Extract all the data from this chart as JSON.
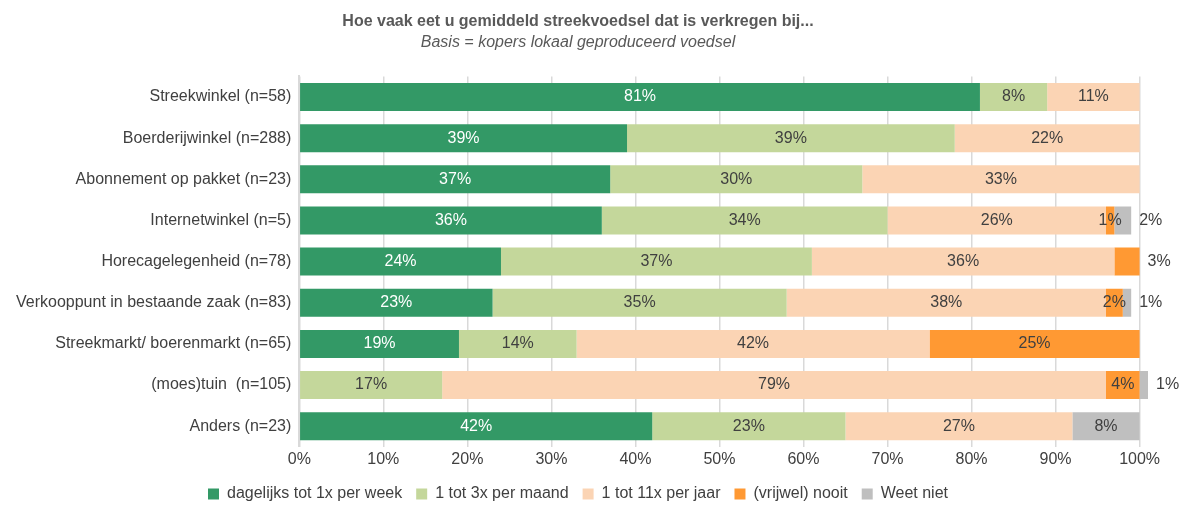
{
  "chart_data": {
    "type": "bar",
    "orientation": "horizontal",
    "stacked": true,
    "title": "Hoe vaak eet u gemiddeld streekvoedsel dat is verkregen bij...",
    "subtitle": "Basis = kopers lokaal geproduceerd voedsel",
    "categories": [
      "Streekwinkel (n=58)",
      "Boerderijwinkel (n=288)",
      "Abonnement op pakket (n=23)",
      "Internetwinkel (n=5)",
      "Horecagelegenheid (n=78)",
      "Verkooppunt in bestaande zaak (n=83)",
      "Streekmarkt/ boerenmarkt (n=65)",
      "(moes)tuin  (n=105)",
      "Anders (n=23)"
    ],
    "series": [
      {
        "name": "dagelijks tot 1x per week",
        "color": "#339966",
        "values": [
          81,
          39,
          37,
          36,
          24,
          23,
          19,
          null,
          42
        ],
        "value_labels": [
          "81%",
          "39%",
          "37%",
          "36%",
          "24%",
          "23%",
          "19%",
          null,
          "42%"
        ]
      },
      {
        "name": "1 tot 3x per maand",
        "color": "#c4d79b",
        "values": [
          8,
          39,
          30,
          34,
          37,
          35,
          14,
          17,
          23
        ],
        "value_labels": [
          "8%",
          "39%",
          "30%",
          "34%",
          "37%",
          "35%",
          "14%",
          "17%",
          "23%"
        ]
      },
      {
        "name": "1 tot 11x per jaar",
        "color": "#fbd4b4",
        "values": [
          11,
          22,
          33,
          26,
          36,
          38,
          42,
          79,
          27
        ],
        "value_labels": [
          "11%",
          "22%",
          "33%",
          "26%",
          "36%",
          "38%",
          "42%",
          "79%",
          "27%"
        ]
      },
      {
        "name": "(vrijwel) nooit",
        "color": "#ff9933",
        "values": [
          null,
          null,
          null,
          1,
          3,
          2,
          25,
          4,
          null
        ],
        "value_labels": [
          null,
          null,
          null,
          "1%",
          "3%",
          "2%",
          "25%",
          "4%",
          null
        ]
      },
      {
        "name": "Weet niet",
        "color": "#bfbfbf",
        "values": [
          null,
          null,
          null,
          2,
          null,
          1,
          null,
          1,
          8
        ],
        "value_labels": [
          null,
          null,
          null,
          "2%",
          null,
          "1%",
          null,
          "1%",
          "8%"
        ]
      }
    ],
    "xlim": [
      0,
      101
    ],
    "xticks": [
      {
        "value": 0,
        "label": "0%"
      },
      {
        "value": 10,
        "label": "10%"
      },
      {
        "value": 20,
        "label": "20%"
      },
      {
        "value": 30,
        "label": "30%"
      },
      {
        "value": 40,
        "label": "40%"
      },
      {
        "value": 50,
        "label": "50%"
      },
      {
        "value": 60,
        "label": "60%"
      },
      {
        "value": 70,
        "label": "70%"
      },
      {
        "value": 80,
        "label": "80%"
      },
      {
        "value": 90,
        "label": "90%"
      },
      {
        "value": 100,
        "label": "100%"
      }
    ],
    "grid": "x",
    "legend": "bottom"
  }
}
